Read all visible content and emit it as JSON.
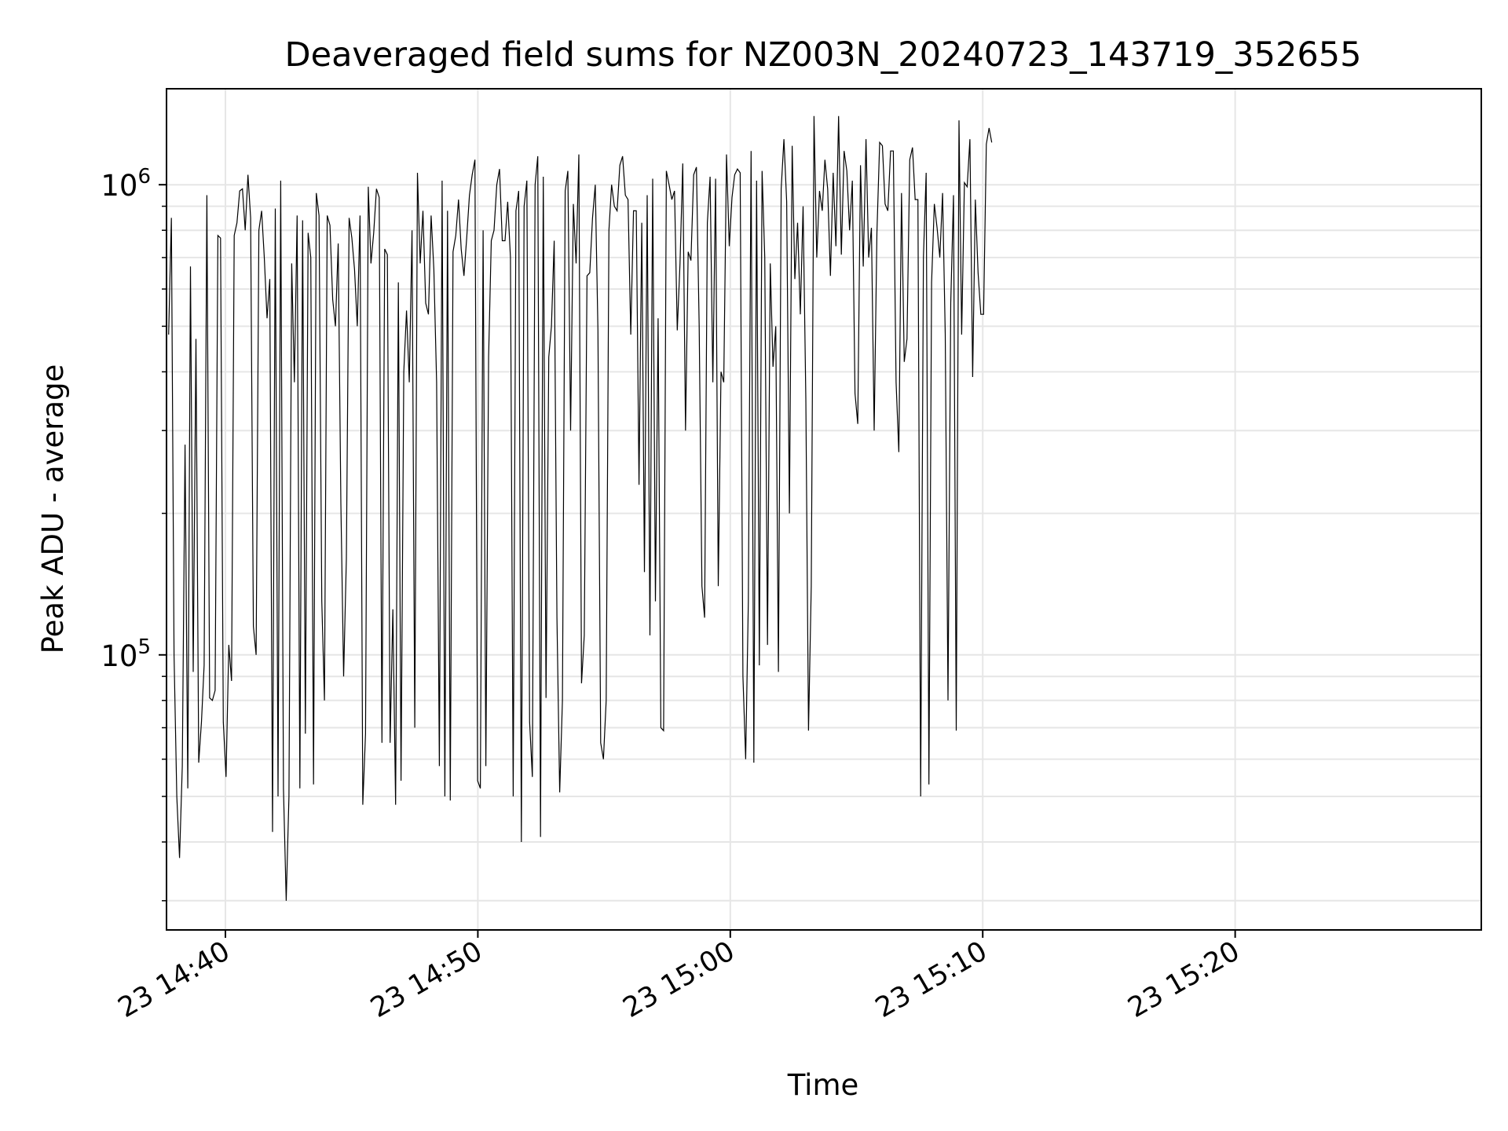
{
  "chart_data": {
    "type": "line",
    "title": "Deaveraged field sums for NZ003N_20240723_143719_352655",
    "xlabel": "Time",
    "ylabel": "Peak ADU - average",
    "yscale": "log",
    "ylim": [
      26000,
      1600000
    ],
    "xlim": [
      "2024-07-23 14:37:40",
      "2024-07-23 15:29:45"
    ],
    "x_ticks": [
      {
        "value": "2024-07-23 14:40:00",
        "label": "23 14:40"
      },
      {
        "value": "2024-07-23 14:50:00",
        "label": "23 14:50"
      },
      {
        "value": "2024-07-23 15:00:00",
        "label": "23 15:00"
      },
      {
        "value": "2024-07-23 15:10:00",
        "label": "23 15:10"
      },
      {
        "value": "2024-07-23 15:20:00",
        "label": "23 15:20"
      }
    ],
    "y_ticks": [
      {
        "value": 100000,
        "base": "10",
        "exp": "5"
      },
      {
        "value": 1000000,
        "base": "10",
        "exp": "6"
      }
    ],
    "grid": true,
    "line_color": "#000000",
    "grid_color": "#e6e6e6",
    "start_time": "2024-07-23 14:37:45",
    "sample_interval_s": 6.5,
    "values": [
      480000,
      850000,
      100000,
      50000,
      37000,
      58000,
      280000,
      52000,
      670000,
      92000,
      470000,
      59000,
      72000,
      95000,
      950000,
      81000,
      80000,
      84000,
      780000,
      770000,
      72000,
      55000,
      105000,
      88000,
      780000,
      830000,
      970000,
      980000,
      800000,
      1050000,
      850000,
      115000,
      100000,
      800000,
      880000,
      700000,
      520000,
      630000,
      42000,
      890000,
      50000,
      1020000,
      52000,
      30000,
      50000,
      680000,
      380000,
      860000,
      52000,
      840000,
      68000,
      790000,
      700000,
      53000,
      960000,
      860000,
      130000,
      80000,
      860000,
      820000,
      570000,
      500000,
      750000,
      210000,
      90000,
      160000,
      850000,
      770000,
      660000,
      500000,
      860000,
      48000,
      68000,
      990000,
      680000,
      790000,
      980000,
      940000,
      65000,
      730000,
      710000,
      65000,
      125000,
      48000,
      620000,
      54000,
      400000,
      540000,
      380000,
      800000,
      70000,
      1060000,
      680000,
      880000,
      560000,
      530000,
      860000,
      660000,
      380000,
      58000,
      1020000,
      50000,
      880000,
      49000,
      720000,
      780000,
      930000,
      730000,
      640000,
      770000,
      950000,
      1050000,
      1130000,
      54000,
      52000,
      800000,
      58000,
      430000,
      760000,
      800000,
      1000000,
      1080000,
      760000,
      760000,
      920000,
      700000,
      50000,
      880000,
      970000,
      40000,
      900000,
      1020000,
      72000,
      55000,
      1000000,
      1150000,
      41000,
      1040000,
      81000,
      430000,
      500000,
      760000,
      120000,
      51000,
      80000,
      970000,
      1070000,
      300000,
      910000,
      680000,
      1160000,
      87000,
      110000,
      640000,
      650000,
      850000,
      1000000,
      490000,
      65000,
      60000,
      80000,
      800000,
      1000000,
      900000,
      880000,
      1100000,
      1150000,
      950000,
      930000,
      480000,
      880000,
      880000,
      230000,
      830000,
      150000,
      950000,
      110000,
      1030000,
      130000,
      520000,
      70000,
      69000,
      1070000,
      1000000,
      930000,
      970000,
      490000,
      680000,
      1110000,
      300000,
      720000,
      690000,
      1050000,
      1090000,
      500000,
      140000,
      120000,
      830000,
      1040000,
      380000,
      1030000,
      140000,
      400000,
      380000,
      1160000,
      740000,
      940000,
      1050000,
      1080000,
      1060000,
      90000,
      60000,
      130000,
      1180000,
      59000,
      1020000,
      95000,
      1070000,
      700000,
      105000,
      680000,
      410000,
      500000,
      92000,
      980000,
      1250000,
      920000,
      200000,
      1210000,
      630000,
      830000,
      530000,
      900000,
      350000,
      69000,
      140000,
      1400000,
      700000,
      970000,
      880000,
      1130000,
      980000,
      640000,
      1060000,
      740000,
      1400000,
      710000,
      1180000,
      1070000,
      800000,
      1020000,
      360000,
      310000,
      1100000,
      670000,
      1250000,
      700000,
      810000,
      300000,
      790000,
      1230000,
      1210000,
      910000,
      880000,
      1180000,
      1180000,
      380000,
      270000,
      960000,
      420000,
      470000,
      1130000,
      1200000,
      930000,
      930000,
      50000,
      700000,
      1060000,
      53000,
      620000,
      910000,
      810000,
      700000,
      960000,
      480000,
      80000,
      560000,
      950000,
      69000,
      1370000,
      480000,
      1010000,
      990000,
      1250000,
      390000,
      930000,
      650000,
      530000,
      530000,
      1220000,
      1320000,
      1230000
    ]
  }
}
